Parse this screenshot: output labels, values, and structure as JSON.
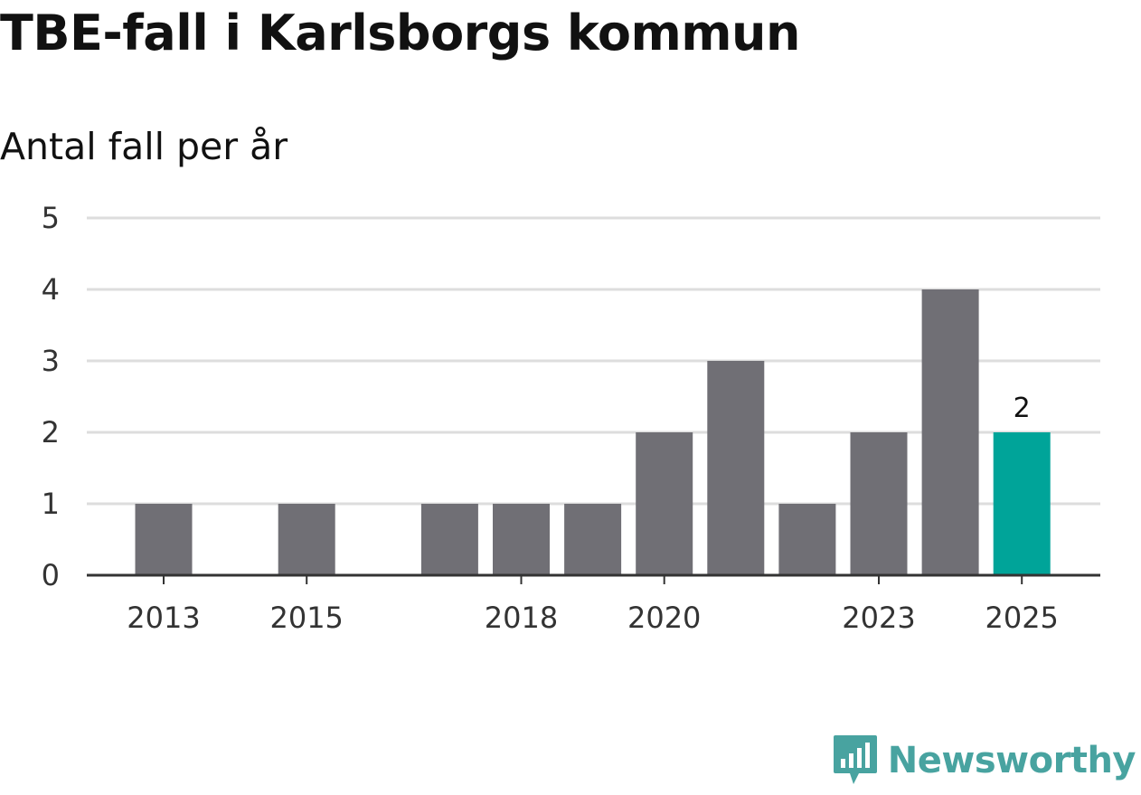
{
  "title": "TBE-fall i Karlsborgs kommun",
  "subtitle": "Antal fall per år",
  "brand": {
    "name": "Newsworthy",
    "icon": "newsworthy-logo-icon",
    "color": "#48a3a0"
  },
  "colors": {
    "bar": "#706f75",
    "highlight": "#00a499",
    "grid": "#dddddd",
    "axis": "#333333"
  },
  "chart_data": {
    "type": "bar",
    "title": "TBE-fall i Karlsborgs kommun",
    "subtitle": "Antal fall per år",
    "xlabel": "",
    "ylabel": "",
    "x": [
      2013,
      2014,
      2015,
      2016,
      2017,
      2018,
      2019,
      2020,
      2021,
      2022,
      2023,
      2024,
      2025
    ],
    "values": [
      1,
      0,
      1,
      0,
      1,
      1,
      1,
      2,
      3,
      1,
      2,
      4,
      2
    ],
    "x_tick_labels": [
      "2013",
      "2015",
      "2018",
      "2020",
      "2023",
      "2025"
    ],
    "y_ticks": [
      0,
      1,
      2,
      3,
      4,
      5
    ],
    "ylim": [
      0,
      5
    ],
    "grid": true,
    "highlight": {
      "x": 2025,
      "label": "2"
    },
    "legend": "none"
  }
}
